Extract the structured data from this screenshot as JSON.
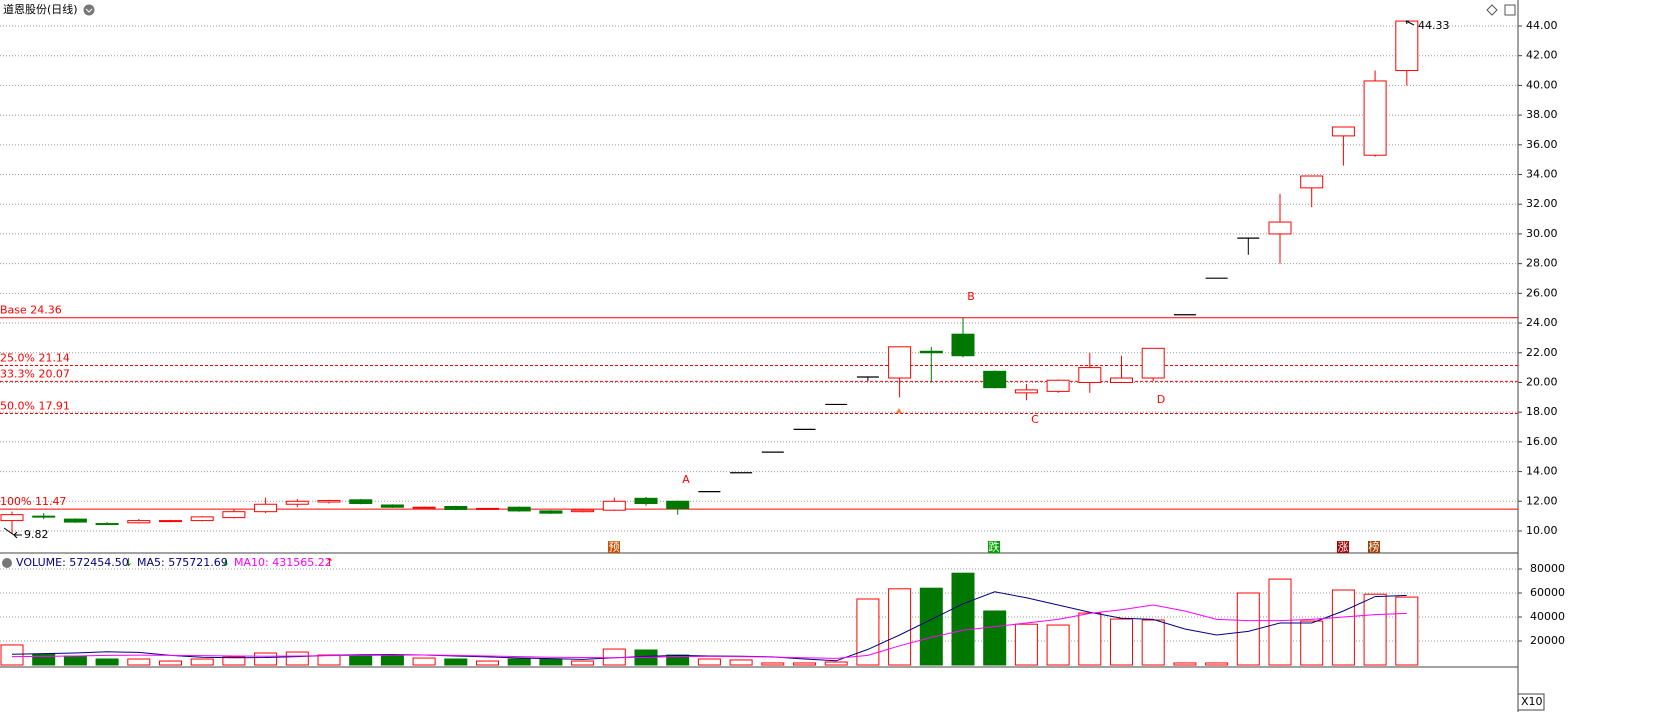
{
  "chart_data": [
    {
      "type": "candlestick",
      "title": "道恩股份(日线)",
      "open": [
        10.7,
        11.0,
        10.8,
        10.5,
        10.55,
        10.65,
        10.7,
        10.9,
        11.3,
        11.8,
        11.95,
        12.1,
        11.75,
        11.55,
        11.65,
        11.5,
        11.6,
        11.35,
        11.3,
        11.4,
        12.2,
        12.0,
        12.65,
        13.92,
        15.31,
        16.84,
        18.52,
        20.37,
        20.3,
        22.1,
        23.25,
        20.75,
        19.3,
        19.4,
        20.0,
        20.0,
        20.3,
        24.56,
        27.02,
        29.72,
        30.0,
        33.1,
        36.6,
        35.3,
        41.0
      ],
      "high": [
        11.3,
        11.2,
        10.85,
        10.6,
        10.8,
        10.75,
        11.0,
        11.5,
        12.25,
        12.15,
        12.1,
        12.15,
        11.8,
        11.65,
        11.7,
        11.55,
        11.65,
        11.4,
        11.45,
        12.25,
        12.3,
        12.05,
        12.65,
        13.92,
        15.31,
        16.84,
        18.52,
        20.37,
        22.4,
        22.4,
        24.36,
        20.8,
        19.9,
        20.2,
        22.0,
        21.8,
        22.3,
        24.56,
        27.02,
        29.72,
        32.7,
        33.9,
        37.2,
        41.0,
        44.33
      ],
      "low": [
        9.82,
        10.8,
        10.55,
        10.4,
        10.5,
        10.6,
        10.65,
        10.85,
        11.2,
        11.6,
        11.85,
        11.8,
        11.55,
        11.5,
        11.4,
        11.45,
        11.3,
        11.15,
        11.25,
        11.35,
        11.7,
        11.1,
        12.65,
        13.92,
        15.31,
        16.84,
        18.52,
        20.1,
        19.0,
        20.0,
        21.7,
        19.6,
        18.8,
        19.3,
        19.3,
        20.0,
        20.1,
        24.56,
        27.02,
        28.6,
        28.0,
        31.8,
        34.6,
        35.2,
        40.0
      ],
      "close": [
        11.1,
        10.95,
        10.6,
        10.45,
        10.7,
        10.7,
        10.95,
        11.3,
        11.8,
        12.0,
        12.05,
        11.85,
        11.6,
        11.6,
        11.45,
        11.52,
        11.35,
        11.2,
        11.4,
        12.0,
        11.85,
        11.5,
        12.65,
        13.92,
        15.31,
        16.84,
        18.52,
        20.37,
        22.4,
        22.0,
        21.8,
        19.65,
        19.5,
        20.15,
        21.0,
        20.3,
        22.3,
        24.56,
        27.02,
        29.72,
        30.8,
        33.9,
        37.2,
        40.3,
        44.33
      ],
      "up_color": "#ff0000",
      "down_color": "#007800",
      "flat_color": "#000000",
      "ylim": [
        8.72,
        44.74
      ],
      "yticks": [
        {
          "value": 10,
          "label": "10.00"
        },
        {
          "value": 12,
          "label": "12.00"
        },
        {
          "value": 14,
          "label": "14.00"
        },
        {
          "value": 16,
          "label": "16.00"
        },
        {
          "value": 18,
          "label": "18.00"
        },
        {
          "value": 20,
          "label": "20.00"
        },
        {
          "value": 22,
          "label": "22.00"
        },
        {
          "value": 24,
          "label": "24.00"
        },
        {
          "value": 26,
          "label": "26.00"
        },
        {
          "value": 28,
          "label": "28.00"
        },
        {
          "value": 30,
          "label": "30.00"
        },
        {
          "value": 32,
          "label": "32.00"
        },
        {
          "value": 34,
          "label": "34.00"
        },
        {
          "value": 36,
          "label": "36.00"
        },
        {
          "value": 38,
          "label": "38.00"
        },
        {
          "value": 40,
          "label": "40.00"
        },
        {
          "value": 42,
          "label": "42.00"
        },
        {
          "value": 44,
          "label": "44.00"
        }
      ],
      "grid": true,
      "levels": [
        {
          "label": "Base 24.36",
          "value": 24.36,
          "dashed": false
        },
        {
          "label": "25.0% 21.14",
          "value": 21.14,
          "dashed": true
        },
        {
          "label": "33.3% 20.07",
          "value": 20.07,
          "dashed": true
        },
        {
          "label": "50.0% 17.91",
          "value": 17.91,
          "dashed": true
        },
        {
          "label": "100% 11.47",
          "value": 11.47,
          "dashed": false
        }
      ],
      "annotations": [
        "A",
        "B",
        "C",
        "D"
      ],
      "low_marker": "9.82",
      "high_marker": "44.33",
      "events": [
        "预",
        "跌",
        "涨",
        "榜"
      ]
    },
    {
      "type": "bar",
      "values": [
        16700,
        9200,
        7500,
        5000,
        5000,
        3300,
        5000,
        6700,
        10000,
        10800,
        8300,
        7500,
        7500,
        5800,
        5000,
        3300,
        5000,
        5000,
        3300,
        13300,
        12500,
        8300,
        5000,
        4200,
        1700,
        1700,
        2500,
        55000,
        63500,
        64000,
        76500,
        45000,
        34000,
        33300,
        43300,
        38300,
        37500,
        1700,
        1700,
        60000,
        71600,
        36600,
        62500,
        59000,
        56600
      ],
      "series": [
        {
          "name": "MA5: 575721.69",
          "arrow": "↓",
          "color": "#000080",
          "values": [
            9000,
            9500,
            10000,
            11000,
            10500,
            8000,
            6500,
            6000,
            6200,
            7000,
            8000,
            8500,
            8700,
            8300,
            7500,
            6800,
            5800,
            5300,
            4700,
            6000,
            7200,
            8000,
            7500,
            7300,
            6800,
            5000,
            3500,
            13000,
            25000,
            38000,
            51000,
            61000,
            56000,
            50000,
            44000,
            39000,
            38000,
            30000,
            25000,
            28000,
            35000,
            35000,
            45000,
            57000,
            58000
          ]
        },
        {
          "name": "MA10: 431565.22",
          "arrow": "↑",
          "color": "#ff00ff",
          "values": [
            7000,
            7200,
            7500,
            8000,
            8200,
            8000,
            7800,
            7500,
            7300,
            7500,
            7800,
            8000,
            8200,
            8300,
            8000,
            7500,
            7000,
            6500,
            6200,
            6000,
            6500,
            7000,
            7200,
            7000,
            6600,
            6000,
            5500,
            8000,
            16000,
            23000,
            29000,
            32000,
            35000,
            38000,
            43000,
            46000,
            50000,
            45000,
            38000,
            37000,
            37000,
            38000,
            40000,
            42000,
            43000
          ]
        }
      ],
      "title": "VOLUME: 572454.50",
      "title_arrow": "↓",
      "ylim": [
        0,
        87500
      ],
      "yticks": [
        20000,
        40000,
        60000,
        80000
      ],
      "unit_label": "X10",
      "grid": true
    }
  ]
}
